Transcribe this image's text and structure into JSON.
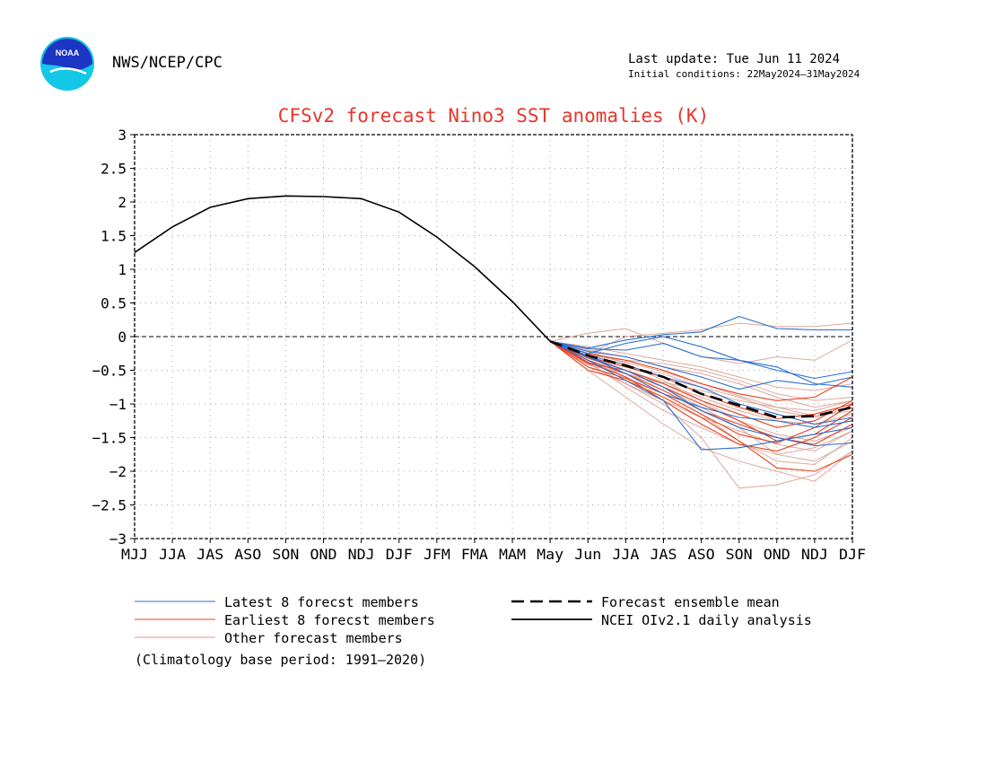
{
  "header": {
    "agency": "NWS/NCEP/CPC",
    "last_update": "Last update: Tue Jun 11 2024",
    "initial_conditions": "Initial conditions: 22May2024–31May2024",
    "logo_text": "NOAA"
  },
  "footnote": "(Climatology base period: 1991–2020)",
  "colors": {
    "title": "#e8352b",
    "latest": "#2a6fd1",
    "earliest": "#e8401c",
    "other": "#d89a8c",
    "observed": "#000000",
    "ensemble_mean": "#000000",
    "grid": "#aaaaaa",
    "logo_blue": "#1b35c4",
    "logo_cyan": "#12c8e6"
  },
  "chart_data": {
    "type": "line",
    "title": "CFSv2 forecast Nino3 SST anomalies (K)",
    "xlabel": "",
    "ylabel": "",
    "categories": [
      "MJJ",
      "JJA",
      "JAS",
      "ASO",
      "SON",
      "OND",
      "NDJ",
      "DJF",
      "JFM",
      "FMA",
      "MAM",
      "May",
      "Jun",
      "JJA",
      "JAS",
      "ASO",
      "SON",
      "OND",
      "NDJ",
      "DJF"
    ],
    "ylim": [
      -3,
      3
    ],
    "yticks": [
      "3",
      "2.5",
      "2",
      "1.5",
      "1",
      "0.5",
      "0",
      "−0.5",
      "−1",
      "−1.5",
      "−2",
      "−2.5",
      "−3"
    ],
    "grid": true,
    "zero_line": true,
    "legend": [
      {
        "label": "Latest 8 forecst members",
        "style": "latest"
      },
      {
        "label": "Earliest 8 forecst members",
        "style": "earliest"
      },
      {
        "label": "Other forecast members",
        "style": "other"
      },
      {
        "label": "Forecast ensemble mean",
        "style": "mean"
      },
      {
        "label": "NCEI OIv2.1 daily analysis",
        "style": "observed"
      }
    ],
    "observed": {
      "name": "NCEI OIv2.1 daily analysis",
      "x_start": 0,
      "values": [
        1.25,
        1.63,
        1.92,
        2.05,
        2.09,
        2.08,
        2.05,
        1.85,
        1.48,
        1.04,
        0.52,
        -0.07
      ]
    },
    "ensemble_mean": {
      "name": "Forecast ensemble mean",
      "x_start": 11,
      "values": [
        -0.07,
        -0.28,
        -0.43,
        -0.6,
        -0.85,
        -1.02,
        -1.2,
        -1.18,
        -1.05
      ]
    },
    "forecast_x_start": 11,
    "latest_members": [
      [
        -0.07,
        -0.17,
        -0.05,
        0.03,
        0.07,
        0.3,
        0.12,
        0.1,
        0.1
      ],
      [
        -0.07,
        -0.25,
        -0.1,
        0.0,
        -0.15,
        -0.35,
        -0.5,
        -0.62,
        -0.52
      ],
      [
        -0.07,
        -0.3,
        -0.5,
        -0.75,
        -1.1,
        -1.35,
        -1.5,
        -1.62,
        -1.58
      ],
      [
        -0.07,
        -0.35,
        -0.65,
        -0.95,
        -1.68,
        -1.65,
        -1.55,
        -1.45,
        -1.35
      ],
      [
        -0.07,
        -0.22,
        -0.3,
        -0.45,
        -0.6,
        -0.78,
        -0.65,
        -0.72,
        -0.6
      ],
      [
        -0.07,
        -0.28,
        -0.42,
        -0.6,
        -0.75,
        -1.0,
        -1.15,
        -1.3,
        -1.2
      ],
      [
        -0.07,
        -0.3,
        -0.55,
        -0.85,
        -1.05,
        -1.2,
        -1.25,
        -1.35,
        -1.25
      ],
      [
        -0.07,
        -0.18,
        -0.2,
        -0.1,
        -0.3,
        -0.35,
        -0.45,
        -0.7,
        -0.75
      ]
    ],
    "earliest_members": [
      [
        -0.07,
        -0.4,
        -0.5,
        -0.75,
        -1.0,
        -1.25,
        -1.55,
        -1.45,
        -1.1
      ],
      [
        -0.07,
        -0.45,
        -0.62,
        -0.85,
        -1.15,
        -1.45,
        -1.58,
        -1.35,
        -1.0
      ],
      [
        -0.07,
        -0.35,
        -0.55,
        -0.8,
        -1.1,
        -1.3,
        -1.5,
        -1.6,
        -1.3
      ],
      [
        -0.07,
        -0.3,
        -0.45,
        -0.6,
        -0.85,
        -1.05,
        -1.22,
        -1.15,
        -1.0
      ],
      [
        -0.07,
        -0.38,
        -0.6,
        -0.95,
        -1.3,
        -1.6,
        -1.7,
        -1.5,
        -1.2
      ],
      [
        -0.07,
        -0.5,
        -0.65,
        -0.9,
        -1.2,
        -1.55,
        -1.95,
        -2.0,
        -1.75
      ],
      [
        -0.07,
        -0.25,
        -0.35,
        -0.5,
        -0.7,
        -0.85,
        -0.95,
        -0.9,
        -0.6
      ],
      [
        -0.07,
        -0.32,
        -0.5,
        -0.7,
        -0.95,
        -1.15,
        -1.35,
        -1.25,
        -0.95
      ]
    ],
    "other_members": [
      [
        -0.07,
        0.05,
        0.12,
        -0.1,
        -0.3,
        -0.4,
        -0.3,
        -0.35,
        -0.05
      ],
      [
        -0.07,
        -0.25,
        0.0,
        0.05,
        0.1,
        0.2,
        0.15,
        0.15,
        0.2
      ],
      [
        -0.07,
        -0.4,
        -0.7,
        -1.0,
        -1.5,
        -2.25,
        -2.2,
        -2.05,
        -1.7
      ],
      [
        -0.07,
        -0.5,
        -0.9,
        -1.3,
        -1.65,
        -1.85,
        -2.0,
        -2.15,
        -1.7
      ],
      [
        -0.07,
        -0.35,
        -0.55,
        -0.75,
        -1.05,
        -1.35,
        -1.75,
        -1.85,
        -1.55
      ],
      [
        -0.07,
        -0.3,
        -0.45,
        -0.55,
        -0.75,
        -0.9,
        -1.1,
        -1.2,
        -1.05
      ],
      [
        -0.07,
        -0.2,
        -0.3,
        -0.45,
        -0.55,
        -0.7,
        -0.9,
        -1.05,
        -0.95
      ],
      [
        -0.07,
        -0.45,
        -0.7,
        -0.95,
        -1.2,
        -1.4,
        -1.6,
        -1.7,
        -1.4
      ],
      [
        -0.07,
        -0.28,
        -0.35,
        -0.4,
        -0.5,
        -0.65,
        -0.85,
        -0.95,
        -0.9
      ],
      [
        -0.07,
        -0.35,
        -0.6,
        -0.85,
        -1.15,
        -1.55,
        -1.85,
        -1.9,
        -1.5
      ],
      [
        -0.07,
        -0.15,
        -0.25,
        -0.35,
        -0.45,
        -0.6,
        -0.75,
        -0.8,
        -0.7
      ],
      [
        -0.07,
        -0.42,
        -0.55,
        -0.7,
        -0.9,
        -1.1,
        -1.25,
        -1.3,
        -1.15
      ],
      [
        -0.07,
        -0.22,
        -0.4,
        -0.65,
        -0.95,
        -1.25,
        -1.45,
        -1.55,
        -1.35
      ],
      [
        -0.07,
        -0.38,
        -0.75,
        -1.1,
        -1.35,
        -1.6,
        -1.75,
        -1.65,
        -1.4
      ],
      [
        -0.07,
        -0.3,
        -0.5,
        -0.68,
        -0.8,
        -0.95,
        -1.05,
        -1.1,
        -0.95
      ],
      [
        -0.07,
        -0.25,
        -0.38,
        -0.52,
        -0.7,
        -0.88,
        -1.05,
        -1.18,
        -1.1
      ]
    ]
  }
}
